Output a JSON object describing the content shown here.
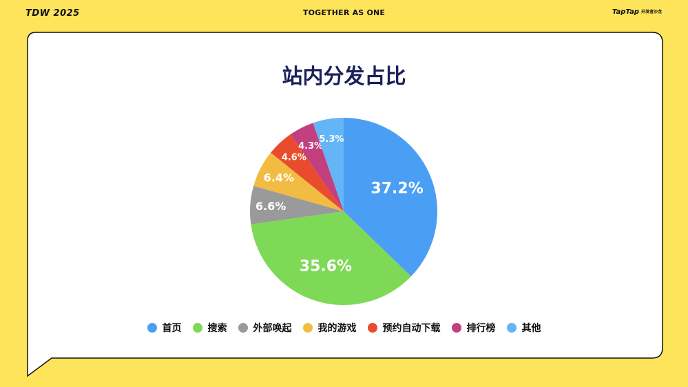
{
  "header": {
    "left_logo": "TDW 2025",
    "center_text": "TOGETHER AS ONE",
    "right_brand": "TapTap",
    "right_brand_sub": "开发者沙龙"
  },
  "chart_data": {
    "type": "pie",
    "title": "站内分发占比",
    "legend_position": "bottom",
    "slices": [
      {
        "label": "首页",
        "value": 37.2,
        "display": "37.2%",
        "color": "#4A9FF5"
      },
      {
        "label": "搜索",
        "value": 35.6,
        "display": "35.6%",
        "color": "#7ED957"
      },
      {
        "label": "外部唤起",
        "value": 6.6,
        "display": "6.6%",
        "color": "#9A9A9A"
      },
      {
        "label": "我的游戏",
        "value": 6.4,
        "display": "6.4%",
        "color": "#F2BC42"
      },
      {
        "label": "预约自动下载",
        "value": 4.6,
        "display": "4.6%",
        "color": "#E84C2C"
      },
      {
        "label": "排行榜",
        "value": 4.3,
        "display": "4.3%",
        "color": "#C2407F"
      },
      {
        "label": "其他",
        "value": 5.3,
        "display": "5.3%",
        "color": "#64B5F6"
      }
    ]
  }
}
